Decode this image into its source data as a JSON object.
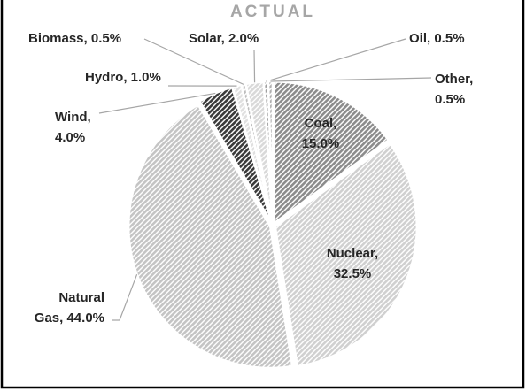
{
  "chart_data": {
    "type": "pie",
    "title": "ACTUAL",
    "labels": [
      "Coal, 15.0%",
      "Nuclear, 32.5%",
      "Natural Gas, 44.0%",
      "Wind, 4.0%",
      "Hydro, 1.0%",
      "Biomass, 0.5%",
      "Solar, 2.0%",
      "Oil, 0.5%",
      "Other, 0.5%"
    ],
    "values": [
      15.0,
      32.5,
      44.0,
      4.0,
      1.0,
      0.5,
      2.0,
      0.5,
      0.5
    ],
    "colors": [
      "#8c8c8c",
      "#d0d0d0",
      "#c4c4c4",
      "#3a3a3a",
      "#e0e0e0",
      "#bdbdbd",
      "#d9d9d9",
      "#a0a0a0",
      "#b0b0b0"
    ]
  }
}
